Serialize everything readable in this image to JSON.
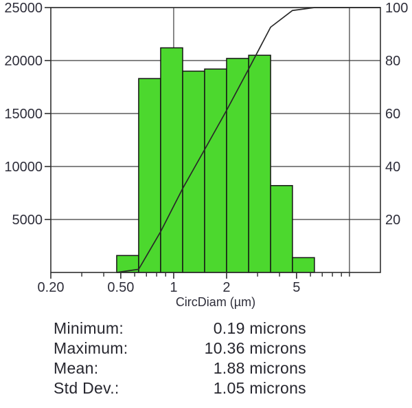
{
  "chart_data": {
    "type": "bar",
    "subtype": "histogram-with-cumulative-line",
    "x_axis": {
      "label": "CircDiam (µm)",
      "scale": "log",
      "min": 0.2,
      "max": 15,
      "major_ticks": [
        0.2,
        0.5,
        1,
        2,
        5
      ],
      "major_tick_labels": [
        "0.20",
        "0.50",
        "1",
        "2",
        "5"
      ],
      "minor_ticks": [
        0.3,
        0.4,
        0.6,
        0.7,
        0.8,
        0.9,
        3,
        4,
        6,
        7,
        8,
        9,
        10
      ],
      "vertical_gridlines": [
        1,
        10
      ],
      "grid": true
    },
    "y_left": {
      "label": "",
      "min": 0,
      "max": 25000,
      "ticks": [
        5000,
        10000,
        15000,
        20000,
        25000
      ],
      "tick_labels": [
        "5000",
        "10000",
        "15000",
        "20000",
        "25000"
      ]
    },
    "y_right": {
      "label": "",
      "min": 0,
      "max": 100,
      "ticks": [
        20,
        40,
        60,
        80,
        100
      ],
      "tick_labels": [
        "20",
        "40",
        "60",
        "80",
        "100"
      ]
    },
    "bins": {
      "edges": [
        0.474,
        0.632,
        0.843,
        1.125,
        1.5,
        2.0,
        2.67,
        3.56,
        4.74,
        6.32
      ],
      "counts": [
        1600,
        18300,
        21200,
        19000,
        19200,
        20200,
        20500,
        8200,
        1400
      ]
    },
    "cumulative_percent_at_edges": [
      0,
      1.2,
      15.4,
      31.7,
      46.4,
      61.2,
      76.8,
      92.6,
      98.9,
      100
    ],
    "legend": null,
    "colors": {
      "bar_fill": "#4cd82e",
      "bar_border": "#151515",
      "cumulative_line": "#282828",
      "grid": "#3b3b3b",
      "axis": "#2e2e2e",
      "text": "#2e2e3a"
    }
  },
  "stats": {
    "rows": [
      {
        "label": "Minimum:",
        "value": "0.19 microns"
      },
      {
        "label": "Maximum:",
        "value": "10.36 microns"
      },
      {
        "label": "Mean:",
        "value": "1.88 microns"
      },
      {
        "label": "Std Dev.:",
        "value": "1.05 microns"
      }
    ]
  }
}
